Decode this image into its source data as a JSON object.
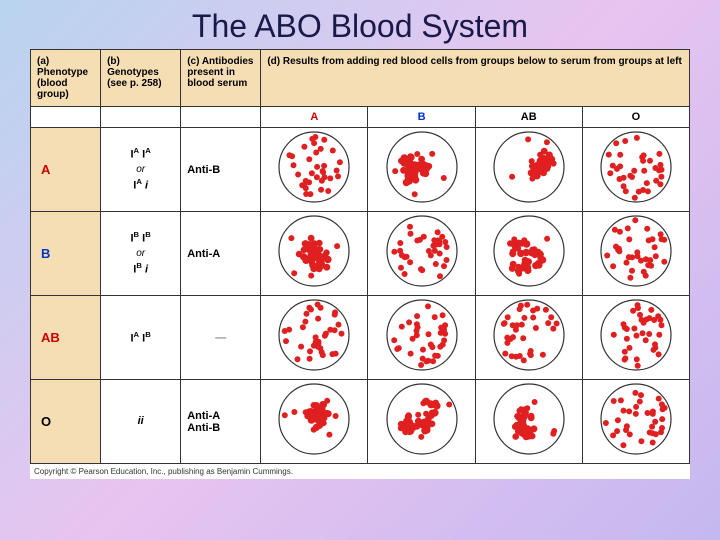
{
  "title": "The ABO Blood System",
  "headers": {
    "a": "(a) Phenotype (blood group)",
    "b": "(b) Genotypes (see p. 258)",
    "c": "(c) Antibodies present in blood serum",
    "d": "(d) Results from adding red blood cells from groups below to serum from groups at left"
  },
  "subcols": [
    "A",
    "B",
    "AB",
    "O"
  ],
  "subcol_colors": [
    "#cc0000",
    "#0033cc",
    "#000000",
    "#000000"
  ],
  "rows": [
    {
      "label": "A",
      "label_color": "#cc0000",
      "genotype_html": "I<sup>A</sup> I<sup>A</sup><br><span class='or'>or</span><br>I<sup>A</sup> <i>i</i>",
      "antibody": "Anti-B",
      "cells": [
        {
          "type": "dispersed"
        },
        {
          "type": "clumped"
        },
        {
          "type": "clumped"
        },
        {
          "type": "dispersed"
        }
      ]
    },
    {
      "label": "B",
      "label_color": "#0033cc",
      "genotype_html": "I<sup>B</sup> I<sup>B</sup><br><span class='or'>or</span><br>I<sup>B</sup> <i>i</i>",
      "antibody": "Anti-A",
      "cells": [
        {
          "type": "clumped"
        },
        {
          "type": "dispersed"
        },
        {
          "type": "clumped"
        },
        {
          "type": "dispersed"
        }
      ]
    },
    {
      "label": "AB",
      "label_color": "#cc0000",
      "genotype_html": "I<sup>A</sup> I<sup>B</sup>",
      "antibody": "—",
      "cells": [
        {
          "type": "dispersed"
        },
        {
          "type": "dispersed"
        },
        {
          "type": "dispersed"
        },
        {
          "type": "dispersed"
        }
      ]
    },
    {
      "label": "O",
      "label_color": "#000000",
      "genotype_html": "<i>ii</i>",
      "antibody": "Anti-A Anti-B",
      "antibody_multiline": true,
      "cells": [
        {
          "type": "clumped"
        },
        {
          "type": "clumped"
        },
        {
          "type": "clumped"
        },
        {
          "type": "dispersed"
        }
      ]
    }
  ],
  "dish": {
    "diameter": 72,
    "border_color": "#333333",
    "fill_color": "#ffffff",
    "dot_color": "#e02020",
    "dot_radius": 3,
    "dispersed_count": 34,
    "clumped_clusters": 4,
    "clumped_per_cluster": 11
  },
  "colors": {
    "header_bg": "#f5deb3",
    "grid": "#333333"
  },
  "copyright": "Copyright © Pearson Education, Inc., publishing as Benjamin Cummings."
}
